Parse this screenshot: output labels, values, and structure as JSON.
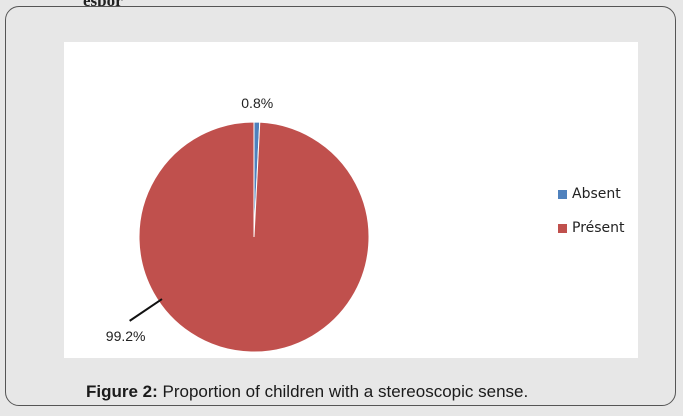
{
  "header": {
    "clipped_heading": "espor"
  },
  "colors": {
    "absent": "#4f81bd",
    "present": "#c0504d"
  },
  "chart_data": {
    "type": "pie",
    "title": "",
    "legend_position": "right",
    "slices": [
      {
        "name": "Absent",
        "value": 0.8,
        "label": "0.8%"
      },
      {
        "name": "Présent",
        "value": 99.2,
        "label": "99.2%"
      }
    ]
  },
  "caption": {
    "label": "Figure 2:",
    "text": " Proportion of children with a stereoscopic sense."
  }
}
